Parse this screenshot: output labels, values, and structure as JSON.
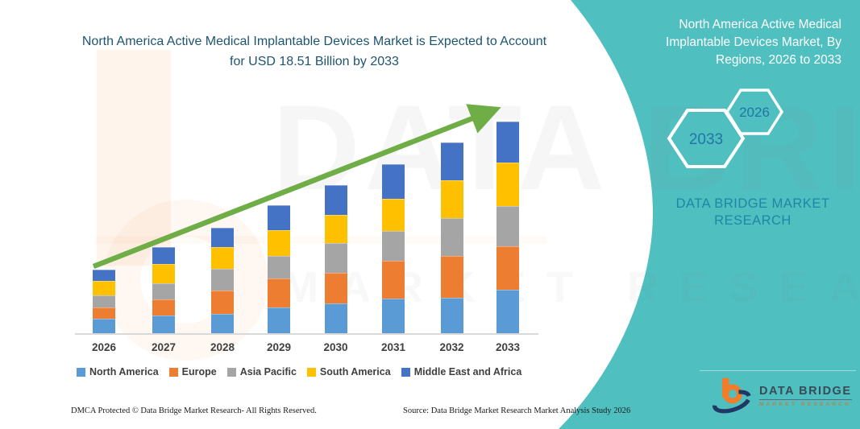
{
  "chart_data": {
    "type": "bar",
    "stacked": true,
    "title": "North America Active Medical Implantable Devices Market is Expected to Account for USD 18.51 Billion by 2033",
    "unit": "USD Billion",
    "categories": [
      "2026",
      "2027",
      "2028",
      "2029",
      "2030",
      "2031",
      "2032",
      "2033"
    ],
    "series": [
      {
        "name": "North America",
        "color": "#5B9BD5",
        "values": [
          1.29,
          1.53,
          1.69,
          2.26,
          2.61,
          3.05,
          3.1,
          3.81
        ]
      },
      {
        "name": "Europe",
        "color": "#ED7D31",
        "values": [
          0.94,
          1.46,
          2.04,
          2.52,
          2.7,
          3.29,
          3.64,
          3.83
        ]
      },
      {
        "name": "Asia Pacific",
        "color": "#A5A5A5",
        "values": [
          1.06,
          1.41,
          1.88,
          1.99,
          2.59,
          2.59,
          3.36,
          3.52
        ]
      },
      {
        "name": "South America",
        "color": "#FFC000",
        "values": [
          1.32,
          1.64,
          1.9,
          2.23,
          2.47,
          2.87,
          3.29,
          3.76
        ]
      },
      {
        "name": "Middle East and Africa",
        "color": "#4472C4",
        "values": [
          0.99,
          1.48,
          1.76,
          2.23,
          2.59,
          3.01,
          3.29,
          3.59
        ]
      }
    ],
    "totals": [
      5.6,
      7.52,
      9.27,
      11.23,
      12.96,
      14.81,
      16.68,
      18.51
    ],
    "ylim": [
      0,
      20
    ],
    "grid": false,
    "legend_position": "bottom",
    "trend_arrow_color": "#6FAD47"
  },
  "side_panel": {
    "title": "North America Active Medical Implantable Devices Market, By Regions, 2026 to 2033",
    "hexagon_back_label": "2033",
    "hexagon_front_label": "2026",
    "brand_text": "DATA BRIDGE MARKET RESEARCH",
    "teal_color": "#4FBFC0"
  },
  "logo": {
    "name": "DATA BRIDGE",
    "tagline": "MARKET RESEARCH"
  },
  "watermark": {
    "line1": "DATA BRIDGE",
    "line2": "MARKET RESEARCH"
  },
  "footer": {
    "left": "DMCA Protected © Data Bridge Market Research-  All Rights Reserved.",
    "right": "Source: Data Bridge Market Research  Market Analysis Study 2026"
  }
}
